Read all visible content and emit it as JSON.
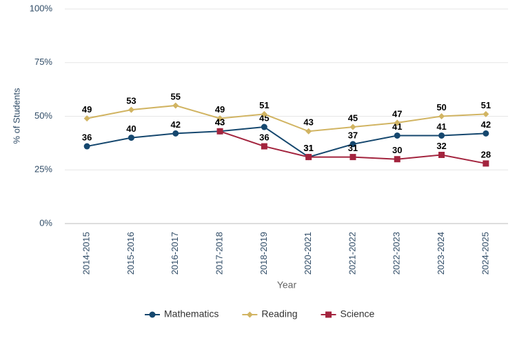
{
  "chart_data": {
    "type": "line",
    "x_label": "Year",
    "y_label": "% of Students",
    "categories": [
      "2014-2015",
      "2015-2016",
      "2016-2017",
      "2017-2018",
      "2018-2019",
      "2020-2021",
      "2021-2022",
      "2022-2023",
      "2023-2024",
      "2024-2025"
    ],
    "series": [
      {
        "name": "Mathematics",
        "color": "#15476e",
        "marker": "circle",
        "values": [
          36,
          40,
          42,
          43,
          45,
          31,
          37,
          41,
          41,
          42
        ]
      },
      {
        "name": "Reading",
        "color": "#d1b462",
        "marker": "diamond",
        "values": [
          49,
          53,
          55,
          49,
          51,
          43,
          45,
          47,
          50,
          51
        ]
      },
      {
        "name": "Science",
        "color": "#a3243e",
        "marker": "square",
        "values": [
          null,
          null,
          null,
          43,
          36,
          31,
          31,
          30,
          32,
          28
        ]
      }
    ],
    "ylim": [
      0,
      100
    ],
    "yticks": [
      {
        "value": 0,
        "label": "0%"
      },
      {
        "value": 25,
        "label": "25%"
      },
      {
        "value": 50,
        "label": "50%"
      },
      {
        "value": 75,
        "label": "75%"
      },
      {
        "value": 100,
        "label": "100%"
      }
    ],
    "grid": true
  }
}
